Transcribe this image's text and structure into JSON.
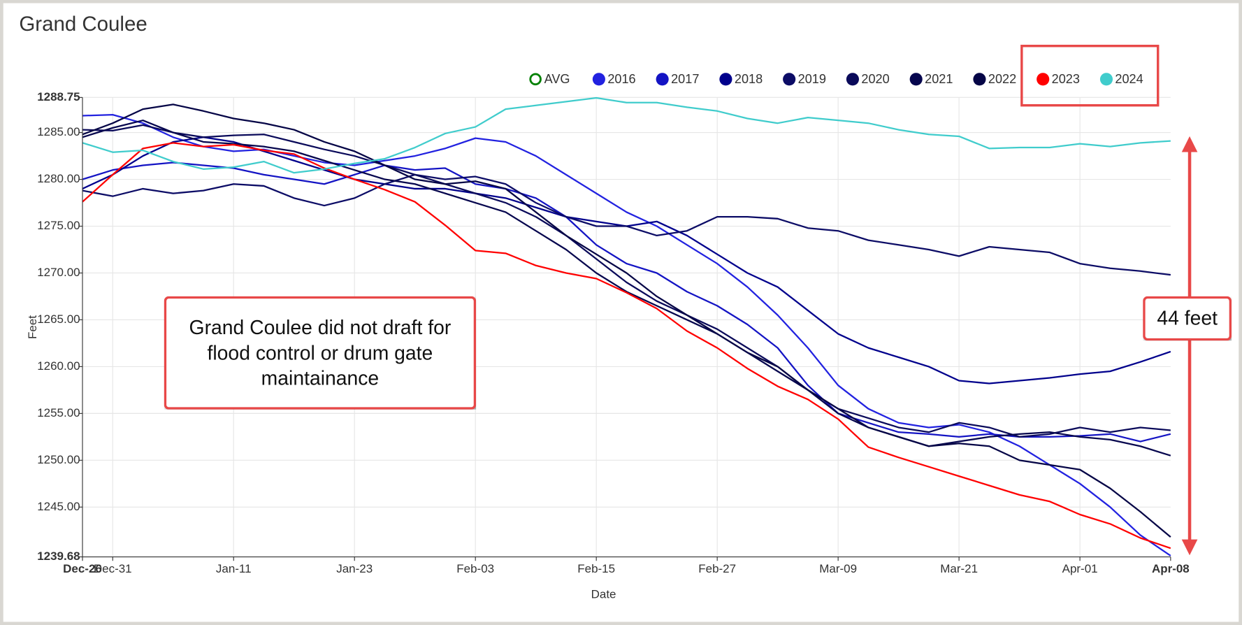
{
  "chart_data": {
    "type": "line",
    "title": "Grand Coulee",
    "x_label": "Date",
    "y_label": "Feet",
    "categories": [
      "Dec-26",
      "Dec-31",
      null,
      null,
      null,
      "Jan-11",
      null,
      null,
      null,
      "Jan-23",
      null,
      null,
      null,
      "Feb-03",
      null,
      null,
      null,
      "Feb-15",
      null,
      null,
      null,
      "Feb-27",
      null,
      null,
      null,
      "Mar-09",
      null,
      null,
      null,
      "Mar-21",
      null,
      null,
      null,
      "Apr-01",
      null,
      null,
      "Apr-08"
    ],
    "ylim": [
      1239.68,
      1288.75
    ],
    "yticks": [
      {
        "value": 1239.68,
        "label": "1239.68"
      },
      {
        "value": 1245,
        "label": "1245.00"
      },
      {
        "value": 1250,
        "label": "1250.00"
      },
      {
        "value": 1255,
        "label": "1255.00"
      },
      {
        "value": 1260,
        "label": "1260.00"
      },
      {
        "value": 1265,
        "label": "1265.00"
      },
      {
        "value": 1270,
        "label": "1270.00"
      },
      {
        "value": 1275,
        "label": "1275.00"
      },
      {
        "value": 1280,
        "label": "1280.00"
      },
      {
        "value": 1285,
        "label": "1285.00"
      },
      {
        "value": 1288.75,
        "label": "1288.75"
      }
    ],
    "grid": true,
    "legend": "top-right",
    "series": [
      {
        "name": "AVG",
        "color": "#008000",
        "values": [
          null,
          null,
          null,
          null,
          null,
          null,
          null,
          null,
          null,
          null,
          null,
          null,
          null,
          null,
          null,
          null,
          null,
          null,
          null,
          null,
          null,
          null,
          null,
          null,
          null,
          null,
          null,
          null,
          null,
          null,
          null,
          null,
          null,
          null,
          null,
          null,
          null
        ]
      },
      {
        "name": "2016",
        "color": "#2222e0",
        "values": [
          1286.8,
          1286.9,
          1286.0,
          1284.5,
          1283.5,
          1283.0,
          1283.2,
          1282.5,
          1281.8,
          1281.5,
          1282.0,
          1282.5,
          1283.3,
          1284.4,
          1284.0,
          1282.5,
          1280.5,
          1278.5,
          1276.5,
          1275.0,
          1273.0,
          1271.0,
          1268.5,
          1265.5,
          1262.0,
          1258.0,
          1255.5,
          1254.0,
          1253.5,
          1253.8,
          1253.0,
          1251.5,
          1249.5,
          1247.5,
          1245.0,
          1242.0,
          1239.8
        ]
      },
      {
        "name": "2017",
        "color": "#1414c4",
        "values": [
          1280.0,
          1281.0,
          1281.5,
          1281.8,
          1281.5,
          1281.2,
          1280.5,
          1280.0,
          1279.5,
          1280.5,
          1281.5,
          1281.0,
          1281.2,
          1279.5,
          1279.0,
          1278.0,
          1276.0,
          1273.0,
          1271.0,
          1270.0,
          1268.0,
          1266.5,
          1264.5,
          1262.0,
          1258.0,
          1255.0,
          1254.0,
          1253.0,
          1252.8,
          1252.5,
          1252.8,
          1252.5,
          1252.5,
          1252.6,
          1252.8,
          1252.0,
          1252.8
        ]
      },
      {
        "name": "2018",
        "color": "#00008c",
        "values": [
          1279.0,
          1280.5,
          1282.5,
          1284.0,
          1284.5,
          1284.0,
          1283.0,
          1282.0,
          1281.0,
          1280.0,
          1279.5,
          1279.0,
          1279.0,
          1278.5,
          1278.0,
          1277.0,
          1276.0,
          1275.5,
          1275.0,
          1275.5,
          1274.0,
          1272.0,
          1270.0,
          1268.5,
          1266.0,
          1263.5,
          1262.0,
          1261.0,
          1260.0,
          1258.5,
          1258.2,
          1258.5,
          1258.8,
          1259.2,
          1259.5,
          1260.5,
          1261.6
        ]
      },
      {
        "name": "2019",
        "color": "#0c0c66",
        "values": [
          1278.8,
          1278.2,
          1279.0,
          1278.5,
          1278.8,
          1279.5,
          1279.3,
          1278.0,
          1277.2,
          1278.0,
          1279.5,
          1280.5,
          1280.0,
          1280.3,
          1279.5,
          1277.5,
          1276.0,
          1275.0,
          1275.0,
          1274.0,
          1274.5,
          1276.0,
          1276.0,
          1275.8,
          1274.8,
          1274.5,
          1273.5,
          1273.0,
          1272.5,
          1271.8,
          1272.8,
          1272.5,
          1272.2,
          1271.0,
          1270.5,
          1270.2,
          1269.8
        ]
      },
      {
        "name": "2020",
        "color": "#0a0a5a",
        "values": [
          1285.3,
          1285.2,
          1285.8,
          1285.0,
          1284.5,
          1284.7,
          1284.8,
          1284.0,
          1283.2,
          1282.5,
          1281.5,
          1280.5,
          1279.5,
          1278.5,
          1277.5,
          1276.0,
          1274.0,
          1271.5,
          1269.0,
          1267.0,
          1265.5,
          1264.0,
          1262.0,
          1260.0,
          1257.5,
          1255.5,
          1254.5,
          1253.5,
          1253.0,
          1254.0,
          1253.5,
          1252.5,
          1252.8,
          1253.5,
          1253.0,
          1253.5,
          1253.2
        ]
      },
      {
        "name": "2021",
        "color": "#06064e",
        "values": [
          1284.5,
          1285.5,
          1286.3,
          1285.0,
          1284.0,
          1283.8,
          1283.5,
          1283.0,
          1282.0,
          1281.0,
          1280.0,
          1279.5,
          1278.5,
          1277.5,
          1276.5,
          1274.5,
          1272.5,
          1270.0,
          1268.0,
          1266.5,
          1265.0,
          1263.5,
          1261.5,
          1259.5,
          1257.5,
          1255.0,
          1253.5,
          1252.5,
          1251.5,
          1252.0,
          1252.5,
          1252.8,
          1253.0,
          1252.5,
          1252.2,
          1251.5,
          1250.5
        ]
      },
      {
        "name": "2022",
        "color": "#050546",
        "values": [
          1284.8,
          1286.0,
          1287.5,
          1288.0,
          1287.3,
          1286.5,
          1286.0,
          1285.3,
          1284.0,
          1283.0,
          1281.5,
          1280.0,
          1279.5,
          1279.8,
          1279.0,
          1276.5,
          1274.0,
          1272.0,
          1270.0,
          1267.5,
          1265.5,
          1263.5,
          1261.5,
          1260.0,
          1257.5,
          1255.5,
          1253.5,
          1252.5,
          1251.5,
          1251.8,
          1251.5,
          1250.0,
          1249.5,
          1249.0,
          1247.0,
          1244.5,
          1241.8
        ]
      },
      {
        "name": "2023",
        "color": "#ff0000",
        "values": [
          1277.6,
          1280.5,
          1283.3,
          1283.9,
          1283.5,
          1283.7,
          1283.1,
          1282.7,
          1281.2,
          1280.0,
          1278.9,
          1277.6,
          1275.1,
          1272.4,
          1272.1,
          1270.8,
          1270.0,
          1269.4,
          1267.9,
          1266.2,
          1263.8,
          1262.0,
          1259.8,
          1257.9,
          1256.5,
          1254.4,
          1251.4,
          1250.3,
          1249.3,
          1248.3,
          1247.3,
          1246.3,
          1245.6,
          1244.2,
          1243.2,
          1241.7,
          1240.6
        ]
      },
      {
        "name": "2024",
        "color": "#40cccc",
        "values": [
          1283.9,
          1282.9,
          1283.1,
          1281.9,
          1281.1,
          1281.3,
          1281.9,
          1280.7,
          1281.1,
          1281.7,
          1282.2,
          1283.4,
          1284.9,
          1285.6,
          1287.5,
          1287.9,
          1288.3,
          1288.7,
          1288.2,
          1288.2,
          1287.7,
          1287.3,
          1286.5,
          1286.0,
          1286.6,
          1286.3,
          1286.0,
          1285.3,
          1284.8,
          1284.6,
          1283.3,
          1283.4,
          1283.4,
          1283.8,
          1283.5,
          1283.9,
          1284.1
        ]
      }
    ],
    "annotations": [
      "Grand Coulee did not draft for flood control or drum gate maintainance",
      "44 feet"
    ]
  }
}
